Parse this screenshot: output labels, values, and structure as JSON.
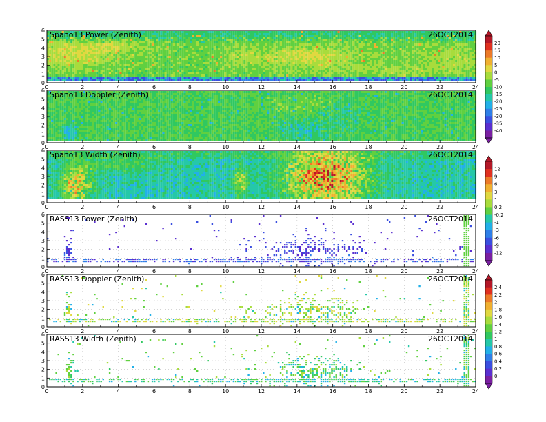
{
  "chart_data": [
    {
      "type": "heatmap",
      "title": "Spano13 Power (Zenith)",
      "date": "26OCT2014",
      "xlim": [
        0,
        24
      ],
      "ylim": [
        0,
        6
      ],
      "x_ticks": [
        "0",
        "2",
        "4",
        "6",
        "8",
        "10",
        "12",
        "14",
        "16",
        "18",
        "20",
        "22",
        "24"
      ],
      "y_ticks": [
        "0",
        "1",
        "2",
        "3",
        "4",
        "5",
        "6"
      ],
      "field": "power",
      "colorbar": "power"
    },
    {
      "type": "heatmap",
      "title": "Spano13 Doppler (Zenith)",
      "date": "26OCT2014",
      "xlim": [
        0,
        24
      ],
      "ylim": [
        0,
        6
      ],
      "x_ticks": [
        "0",
        "2",
        "4",
        "6",
        "8",
        "10",
        "12",
        "14",
        "16",
        "18",
        "20",
        "22",
        "24"
      ],
      "y_ticks": [
        "0",
        "1",
        "2",
        "3",
        "4",
        "5",
        "6"
      ],
      "field": "doppler",
      "colorbar": "power"
    },
    {
      "type": "heatmap",
      "title": "Spano13 Width (Zenith)",
      "date": "26OCT2014",
      "xlim": [
        0,
        24
      ],
      "ylim": [
        0,
        6
      ],
      "x_ticks": [
        "0",
        "2",
        "4",
        "6",
        "8",
        "10",
        "12",
        "14",
        "16",
        "18",
        "20",
        "22",
        "24"
      ],
      "y_ticks": [
        "0",
        "1",
        "2",
        "3",
        "4",
        "5",
        "6"
      ],
      "field": "width",
      "colorbar": "doppler"
    },
    {
      "type": "heatmap",
      "title": "RASS13 Power (Zenith)",
      "date": "26OCT2014",
      "xlim": [
        0,
        24
      ],
      "ylim": [
        0,
        6
      ],
      "x_ticks": [
        "0",
        "2",
        "4",
        "6",
        "8",
        "10",
        "12",
        "14",
        "16",
        "18",
        "20",
        "22",
        "24"
      ],
      "y_ticks": [
        "0",
        "1",
        "2",
        "3",
        "4",
        "5",
        "6"
      ],
      "field": "rass_power",
      "colorbar": "doppler"
    },
    {
      "type": "heatmap",
      "title": "RASS13 Doppler (Zenith)",
      "date": "26OCT2014",
      "xlim": [
        0,
        24
      ],
      "ylim": [
        0,
        6
      ],
      "x_ticks": [
        "0",
        "2",
        "4",
        "6",
        "8",
        "10",
        "12",
        "14",
        "16",
        "18",
        "20",
        "22",
        "24"
      ],
      "y_ticks": [
        "0",
        "1",
        "2",
        "3",
        "4",
        "5",
        "6"
      ],
      "field": "rass_doppler",
      "colorbar": "width"
    },
    {
      "type": "heatmap",
      "title": "RASS13 Width (Zenith)",
      "date": "26OCT2014",
      "xlim": [
        0,
        24
      ],
      "ylim": [
        0,
        6
      ],
      "x_ticks": [
        "0",
        "2",
        "4",
        "6",
        "8",
        "10",
        "12",
        "14",
        "16",
        "18",
        "20",
        "22",
        "24"
      ],
      "y_ticks": [
        "0",
        "1",
        "2",
        "3",
        "4",
        "5",
        "6"
      ],
      "field": "rass_width",
      "colorbar": "width"
    }
  ],
  "colorbars": [
    {
      "id": "power",
      "labels": [
        "20",
        "15",
        "10",
        "5",
        "0",
        "-5",
        "-10",
        "-15",
        "-20",
        "-25",
        "-30",
        "-35",
        "-40"
      ]
    },
    {
      "id": "doppler",
      "labels": [
        "12",
        "9",
        "6",
        "3",
        "1",
        "0.2",
        "-0.2",
        "-1",
        "-3",
        "-6",
        "-9",
        "-12"
      ]
    },
    {
      "id": "width",
      "labels": [
        "2.4",
        "2.2",
        "2",
        "1.8",
        "1.6",
        "1.4",
        "1.2",
        "1",
        "0.8",
        "0.6",
        "0.4",
        "0.2",
        "0"
      ]
    }
  ],
  "colors": {
    "palette": [
      "#7a1fa2",
      "#5a2fd0",
      "#3a4fe0",
      "#2f7fe8",
      "#22b0e8",
      "#25c8a8",
      "#30c860",
      "#60d040",
      "#a8dc3c",
      "#e0d840",
      "#f0b030",
      "#ec7a28",
      "#e03020",
      "#b41828"
    ]
  }
}
